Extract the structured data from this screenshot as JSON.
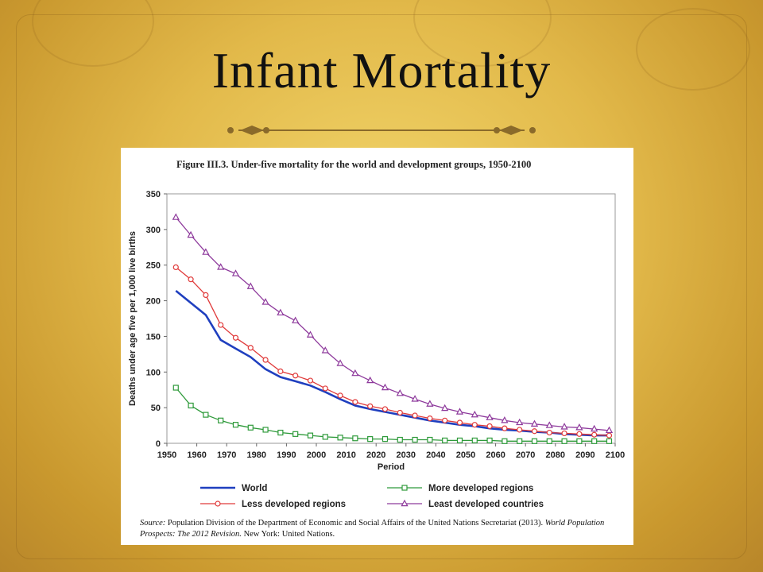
{
  "slide": {
    "title": "Infant Mortality"
  },
  "figure": {
    "title": "Figure III.3. Under-five mortality for the world and development groups, 1950-2100",
    "source_label": "Source:",
    "source_text": " Population Division of the Department of Economic and Social Affairs of the United Nations Secretariat (2013). ",
    "source_publication": "World Population Prospects: The 2012 Revision.",
    "source_tail": " New York: United Nations."
  },
  "colors": {
    "world": "#1f3fbf",
    "more_developed": "#2e9a3a",
    "less_developed": "#e03a3a",
    "least_developed": "#8e3a9c",
    "background_gold": "#e2b94a"
  },
  "chart_data": {
    "type": "line",
    "title": "Figure III.3. Under-five mortality for the world and development groups, 1950-2100",
    "xlabel": "Period",
    "ylabel": "Deaths under age five per 1,000 live births",
    "xlim": [
      1950,
      2100
    ],
    "ylim": [
      0,
      350
    ],
    "xticks": [
      1950,
      1960,
      1970,
      1980,
      1990,
      2000,
      2010,
      2020,
      2030,
      2040,
      2050,
      2060,
      2070,
      2080,
      2090,
      2100
    ],
    "yticks": [
      0,
      50,
      100,
      150,
      200,
      250,
      300,
      350
    ],
    "grid": false,
    "legend_position": "bottom",
    "x": [
      1953,
      1958,
      1963,
      1968,
      1973,
      1978,
      1983,
      1988,
      1993,
      1998,
      2003,
      2008,
      2013,
      2018,
      2023,
      2028,
      2033,
      2038,
      2043,
      2048,
      2053,
      2058,
      2063,
      2068,
      2073,
      2078,
      2083,
      2088,
      2093,
      2098
    ],
    "series": [
      {
        "name": "World",
        "marker": "none",
        "values": [
          214,
          197,
          180,
          145,
          133,
          121,
          104,
          93,
          87,
          81,
          72,
          62,
          53,
          48,
          44,
          40,
          36,
          32,
          29,
          26,
          24,
          21,
          19,
          18,
          16,
          15,
          13,
          12,
          11,
          11
        ]
      },
      {
        "name": "More developed regions",
        "marker": "square",
        "values": [
          78,
          53,
          40,
          32,
          26,
          22,
          19,
          15,
          13,
          11,
          9,
          8,
          7,
          6,
          6,
          5,
          5,
          5,
          4,
          4,
          4,
          4,
          3,
          3,
          3,
          3,
          3,
          3,
          3,
          3
        ]
      },
      {
        "name": "Less developed regions",
        "marker": "circle",
        "values": [
          247,
          230,
          208,
          166,
          148,
          134,
          117,
          101,
          95,
          88,
          77,
          67,
          58,
          52,
          48,
          43,
          39,
          35,
          32,
          29,
          26,
          24,
          21,
          19,
          17,
          15,
          14,
          13,
          12,
          11
        ]
      },
      {
        "name": "Least developed countries",
        "marker": "triangle",
        "values": [
          317,
          292,
          268,
          247,
          238,
          220,
          198,
          183,
          172,
          152,
          130,
          112,
          98,
          88,
          78,
          70,
          62,
          55,
          49,
          44,
          40,
          36,
          32,
          29,
          27,
          25,
          23,
          22,
          20,
          18
        ]
      }
    ]
  }
}
